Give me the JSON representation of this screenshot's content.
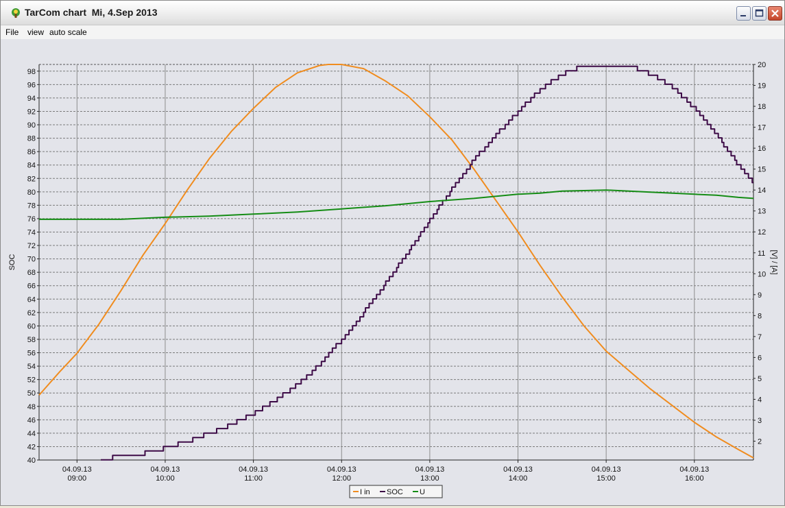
{
  "window": {
    "title": "TarCom chart  Mi, 4.Sep 2013"
  },
  "menu": {
    "items": [
      "File",
      "view",
      "auto scale"
    ]
  },
  "colors": {
    "i_in": "#f08c1e",
    "soc": "#3c0a46",
    "u": "#148c14",
    "background": "#e3e4ea",
    "grid": "#6e6e6e"
  },
  "chart_data": {
    "type": "line",
    "title": "",
    "xlabel": "",
    "ylabel_left": "SOC",
    "ylabel_right": "[V] / [A]",
    "x_ticks": [
      {
        "date": "04.09.13",
        "time": "09:00",
        "hour": 9
      },
      {
        "date": "04.09.13",
        "time": "10:00",
        "hour": 10
      },
      {
        "date": "04.09.13",
        "time": "11:00",
        "hour": 11
      },
      {
        "date": "04.09.13",
        "time": "12:00",
        "hour": 12
      },
      {
        "date": "04.09.13",
        "time": "13:00",
        "hour": 13
      },
      {
        "date": "04.09.13",
        "time": "14:00",
        "hour": 14
      },
      {
        "date": "04.09.13",
        "time": "15:00",
        "hour": 15
      },
      {
        "date": "04.09.13",
        "time": "16:00",
        "hour": 16
      }
    ],
    "x_range_hours": [
      8.57,
      16.67
    ],
    "ylim_left": [
      40,
      99
    ],
    "ylim_right": [
      1.1,
      20
    ],
    "y_ticks_left": [
      40,
      42,
      44,
      46,
      48,
      50,
      52,
      54,
      56,
      58,
      60,
      62,
      64,
      66,
      68,
      70,
      72,
      74,
      76,
      78,
      80,
      82,
      84,
      86,
      88,
      90,
      92,
      94,
      96,
      98
    ],
    "y_ticks_right": [
      2,
      3,
      4,
      5,
      6,
      7,
      8,
      9,
      10,
      11,
      12,
      13,
      14,
      15,
      16,
      17,
      18,
      19,
      20
    ],
    "grid": true,
    "legend_position": "bottom-center",
    "series": [
      {
        "name": "I in",
        "axis": "right",
        "x": [
          8.57,
          8.8,
          9.0,
          9.25,
          9.5,
          9.75,
          10.0,
          10.25,
          10.5,
          10.75,
          11.0,
          11.25,
          11.5,
          11.75,
          11.85,
          12.0,
          12.25,
          12.5,
          12.75,
          13.0,
          13.25,
          13.5,
          13.75,
          14.0,
          14.25,
          14.5,
          14.75,
          15.0,
          15.25,
          15.5,
          15.75,
          16.0,
          16.25,
          16.5,
          16.67
        ],
        "values": [
          4.2,
          5.3,
          6.2,
          7.6,
          9.2,
          10.9,
          12.4,
          14.0,
          15.5,
          16.8,
          17.9,
          18.9,
          19.6,
          19.95,
          20.0,
          20.0,
          19.8,
          19.2,
          18.5,
          17.5,
          16.4,
          15.0,
          13.5,
          12.0,
          10.4,
          8.9,
          7.5,
          6.3,
          5.4,
          4.5,
          3.7,
          2.9,
          2.2,
          1.6,
          1.2
        ]
      },
      {
        "name": "SOC",
        "axis": "left",
        "step": 0.667,
        "x": [
          9.27,
          9.5,
          9.75,
          10.0,
          10.25,
          10.5,
          10.75,
          11.0,
          11.25,
          11.5,
          11.75,
          12.0,
          12.25,
          12.5,
          12.75,
          13.0,
          13.25,
          13.5,
          13.75,
          14.0,
          14.25,
          14.5,
          14.75,
          15.0,
          15.25,
          15.5,
          15.75,
          16.0,
          16.25,
          16.5,
          16.67
        ],
        "values": [
          40,
          40.7,
          41.0,
          41.8,
          42.8,
          44.0,
          45.3,
          47.0,
          49.0,
          51.3,
          54.2,
          58.0,
          62.0,
          66.4,
          71.0,
          75.8,
          80.4,
          84.8,
          88.5,
          92.0,
          95.2,
          97.6,
          98.9,
          98.9,
          98.9,
          97.6,
          95.6,
          92.5,
          88.5,
          84.0,
          81.3
        ]
      },
      {
        "name": "U",
        "axis": "right",
        "x": [
          8.57,
          9.5,
          9.75,
          10.0,
          10.5,
          11.0,
          11.5,
          12.0,
          12.5,
          13.0,
          13.5,
          14.0,
          14.25,
          14.5,
          15.0,
          15.5,
          16.0,
          16.25,
          16.5,
          16.67
        ],
        "values": [
          12.6,
          12.6,
          12.65,
          12.7,
          12.75,
          12.85,
          12.95,
          13.1,
          13.25,
          13.45,
          13.6,
          13.8,
          13.85,
          13.95,
          14.0,
          13.9,
          13.8,
          13.75,
          13.65,
          13.6
        ]
      }
    ]
  }
}
